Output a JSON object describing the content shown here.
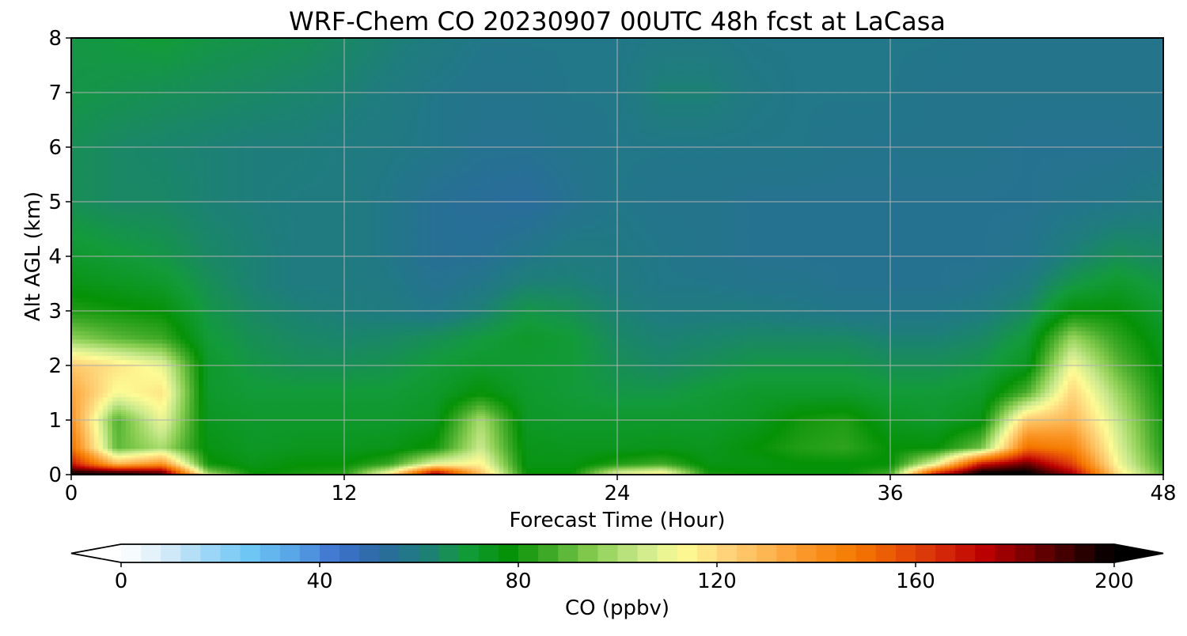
{
  "chart_data": {
    "type": "heatmap",
    "title": "WRF-Chem CO  20230907 00UTC 48h fcst at LaCasa",
    "xlabel": "Forecast Time (Hour)",
    "ylabel": "Alt AGL (km)",
    "xlim": [
      0,
      48
    ],
    "ylim": [
      0,
      8
    ],
    "xticks": [
      0,
      12,
      24,
      36,
      48
    ],
    "yticks": [
      0,
      1,
      2,
      3,
      4,
      5,
      6,
      7,
      8
    ],
    "grid": true,
    "x": [
      0,
      2,
      4,
      6,
      8,
      10,
      12,
      14,
      16,
      18,
      20,
      22,
      24,
      26,
      28,
      30,
      32,
      34,
      36,
      38,
      40,
      42,
      44,
      46,
      48
    ],
    "y": [
      0,
      0.05,
      0.2,
      0.5,
      1,
      1.5,
      2,
      2.5,
      3,
      3.5,
      4,
      5,
      6,
      7,
      8
    ],
    "z": [
      [
        200,
        200,
        190,
        110,
        80,
        82,
        84,
        120,
        180,
        130,
        80,
        80,
        110,
        118,
        82,
        80,
        80,
        80,
        90,
        175,
        200,
        200,
        180,
        120,
        90
      ],
      [
        195,
        190,
        185,
        95,
        78,
        80,
        82,
        110,
        170,
        125,
        78,
        78,
        105,
        112,
        80,
        78,
        78,
        78,
        85,
        160,
        198,
        200,
        175,
        118,
        88
      ],
      [
        170,
        130,
        140,
        80,
        75,
        78,
        78,
        85,
        110,
        115,
        76,
        76,
        82,
        86,
        76,
        76,
        78,
        78,
        78,
        110,
        170,
        185,
        160,
        112,
        85
      ],
      [
        150,
        90,
        100,
        76,
        73,
        74,
        74,
        75,
        80,
        105,
        75,
        74,
        74,
        75,
        74,
        78,
        82,
        84,
        78,
        78,
        92,
        150,
        145,
        108,
        82
      ],
      [
        140,
        88,
        110,
        74,
        72,
        72,
        72,
        72,
        74,
        100,
        73,
        72,
        72,
        72,
        72,
        74,
        80,
        82,
        74,
        72,
        76,
        125,
        130,
        104,
        80
      ],
      [
        135,
        112,
        118,
        72,
        70,
        70,
        70,
        70,
        72,
        78,
        72,
        70,
        68,
        68,
        70,
        72,
        72,
        72,
        70,
        70,
        72,
        88,
        122,
        98,
        78
      ],
      [
        125,
        118,
        110,
        72,
        68,
        66,
        66,
        67,
        70,
        72,
        71,
        70,
        66,
        64,
        66,
        68,
        68,
        68,
        66,
        66,
        68,
        74,
        112,
        90,
        76
      ],
      [
        96,
        90,
        86,
        70,
        66,
        64,
        63,
        64,
        66,
        69,
        72,
        70,
        64,
        62,
        63,
        64,
        64,
        64,
        62,
        62,
        64,
        70,
        98,
        84,
        74
      ],
      [
        82,
        80,
        78,
        68,
        64,
        62,
        61,
        60,
        58,
        62,
        68,
        66,
        62,
        60,
        60,
        60,
        59,
        58,
        58,
        58,
        60,
        64,
        78,
        78,
        71
      ],
      [
        76,
        74,
        72,
        66,
        62,
        60,
        60,
        59,
        56,
        58,
        62,
        62,
        60,
        58,
        58,
        57,
        57,
        56,
        56,
        56,
        57,
        60,
        68,
        72,
        68
      ],
      [
        72,
        70,
        68,
        64,
        62,
        60,
        60,
        58,
        55,
        55,
        58,
        60,
        59,
        58,
        57,
        56,
        56,
        56,
        56,
        56,
        56,
        57,
        62,
        66,
        64
      ],
      [
        66,
        64,
        64,
        62,
        61,
        60,
        60,
        58,
        55,
        54,
        53,
        56,
        58,
        57,
        57,
        56,
        56,
        56,
        56,
        56,
        56,
        56,
        57,
        58,
        60
      ],
      [
        66,
        64,
        63,
        62,
        61,
        61,
        60,
        59,
        58,
        56,
        56,
        57,
        58,
        58,
        58,
        58,
        58,
        57,
        57,
        57,
        57,
        56,
        56,
        56,
        57
      ],
      [
        68,
        67,
        66,
        65,
        64,
        63,
        62,
        60,
        58,
        57,
        57,
        58,
        58,
        62,
        62,
        59,
        58,
        58,
        58,
        57,
        57,
        57,
        57,
        57,
        57
      ],
      [
        68,
        69,
        70,
        68,
        67,
        66,
        64,
        62,
        60,
        58,
        58,
        58,
        58,
        59,
        59,
        58,
        58,
        58,
        58,
        58,
        57,
        57,
        57,
        57,
        57
      ]
    ],
    "colorbar": {
      "label": "CO  (ppbv)",
      "min": 0,
      "max": 200,
      "ticks": [
        0,
        40,
        80,
        120,
        160,
        200
      ],
      "extend": "both",
      "colors": [
        "#ffffff",
        "#d8ecf8",
        "#9fd6f7",
        "#6cc6f4",
        "#58a4e6",
        "#3f72cf",
        "#2b6aa0",
        "#1e7d7c",
        "#129b3a",
        "#059206",
        "#45ac2a",
        "#8ccf54",
        "#c9e98c",
        "#fdfb95",
        "#fed47a",
        "#fdb44f",
        "#fa9322",
        "#f57a00",
        "#e85205",
        "#d52a0a",
        "#bb0000",
        "#7a0000",
        "#3a0000",
        "#000000"
      ]
    }
  }
}
